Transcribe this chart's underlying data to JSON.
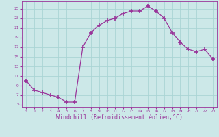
{
  "x": [
    0,
    1,
    2,
    3,
    4,
    5,
    6,
    7,
    8,
    9,
    10,
    11,
    12,
    13,
    14,
    15,
    16,
    17,
    18,
    19,
    20,
    21,
    22,
    23
  ],
  "y": [
    10,
    8,
    7.5,
    7,
    6.5,
    5.5,
    5.5,
    17,
    20,
    21.5,
    22.5,
    23,
    24,
    24.5,
    24.5,
    25.5,
    24.5,
    23,
    20,
    18,
    16.5,
    16,
    16.5,
    14.5
  ],
  "line_color": "#993399",
  "marker": "+",
  "marker_size": 4,
  "marker_lw": 1.2,
  "bg_color": "#cce8e8",
  "grid_color": "#aad4d4",
  "xlabel": "Windchill (Refroidissement éolien,°C)",
  "xlabel_color": "#993399",
  "tick_color": "#993399",
  "xlabel_fontsize": 6.0,
  "yticks": [
    5,
    7,
    9,
    11,
    13,
    15,
    17,
    19,
    21,
    23,
    25
  ],
  "xticks": [
    0,
    1,
    2,
    3,
    4,
    5,
    6,
    7,
    8,
    9,
    10,
    11,
    12,
    13,
    14,
    15,
    16,
    17,
    18,
    19,
    20,
    21,
    22,
    23
  ],
  "ylim": [
    4.5,
    26.5
  ],
  "xlim": [
    -0.5,
    23.5
  ]
}
